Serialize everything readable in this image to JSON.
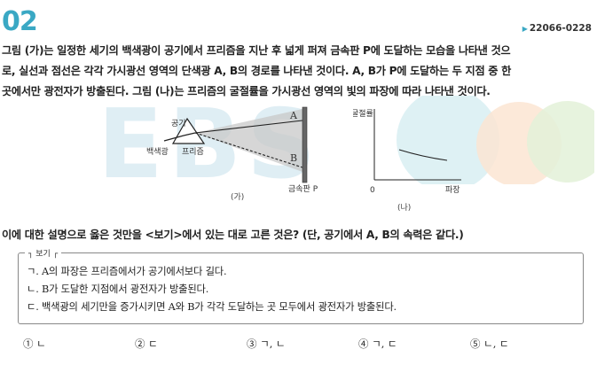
{
  "question": {
    "number": "02",
    "code": "22066-0228",
    "stem_lines": [
      "그림 (가)는 일정한 세기의 백색광이 공기에서 프리즘을 지난 후 넓게 퍼져 금속판 P에 도달하는 모습을 나타낸 것으",
      "로, 실선과 점선은 각각 가시광선 영역의 단색광 A, B의 경로를 나타낸 것이다. A, B가 P에 도달하는 두 지점 중 한",
      "곳에서만 광전자가 방출된다. 그림 (나)는 프리즘의 굴절률을 가시광선 영역의 빛의 파장에 따라 나타낸 것이다."
    ],
    "prompt": "이에 대한 설명으로 옳은 것만을 <보기>에서 있는 대로 고른 것은? (단, 공기에서 A, B의 속력은 같다.)"
  },
  "figure_a": {
    "label_air": "공기",
    "label_white_light": "백색광",
    "label_prism": "프리즘",
    "label_A": "A",
    "label_B": "B",
    "label_plate": "금속판 P",
    "caption": "(가)"
  },
  "figure_b": {
    "ylabel": "굴절률",
    "xlabel": "파장",
    "origin": "0",
    "caption": "(나)"
  },
  "watermark": "EBS",
  "bogi": {
    "label": "보기",
    "items": [
      "ㄱ. A의 파장은 프리즘에서가 공기에서보다 길다.",
      "ㄴ. B가 도달한 지점에서 광전자가 방출된다.",
      "ㄷ. 백색광의 세기만을 증가시키면 A와 B가 각각 도달하는 곳 모두에서 광전자가 방출된다."
    ]
  },
  "choices": [
    "① ㄴ",
    "② ㄷ",
    "③ ㄱ, ㄴ",
    "④ ㄱ, ㄷ",
    "⑤ ㄴ, ㄷ"
  ],
  "colors": {
    "accent": "#3aa8c4"
  }
}
